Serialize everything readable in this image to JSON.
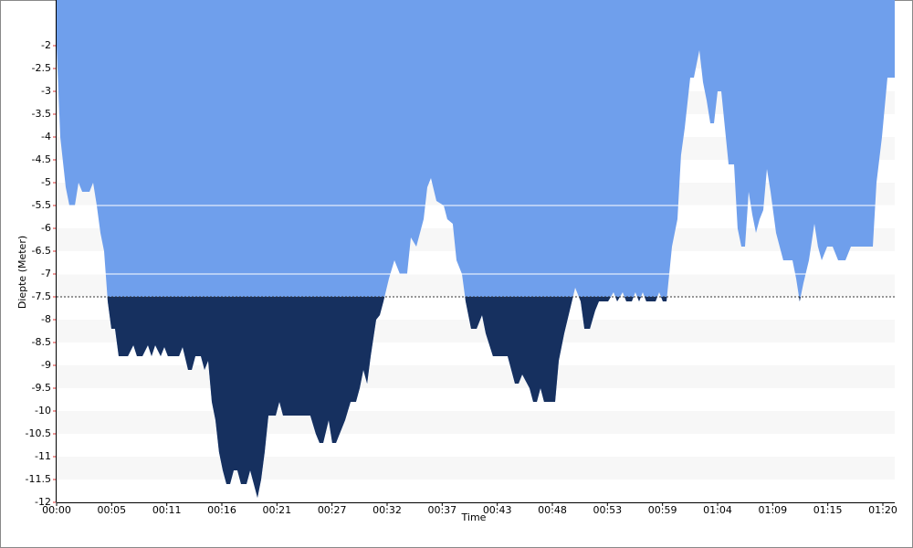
{
  "chart_data": {
    "type": "area",
    "x_label": "Time",
    "y_label": "Diepte (Meter)",
    "x": [
      0,
      0.35,
      0.88,
      1.24,
      1.77,
      2.12,
      2.48,
      3.18,
      3.54,
      3.89,
      4.24,
      4.6,
      4.95,
      5.3,
      5.66,
      6.01,
      6.9,
      7.43,
      7.78,
      8.31,
      8.84,
      9.19,
      9.55,
      10.08,
      10.43,
      10.78,
      11.85,
      12.2,
      12.73,
      13.08,
      13.44,
      13.97,
      14.32,
      14.67,
      15.03,
      15.38,
      15.73,
      16.09,
      16.44,
      16.8,
      17.15,
      17.5,
      17.86,
      18.39,
      18.74,
      19.09,
      19.45,
      19.8,
      20.15,
      20.51,
      21.22,
      21.57,
      21.92,
      24.57,
      25.1,
      25.46,
      25.81,
      26.34,
      26.69,
      27.05,
      27.58,
      27.93,
      28.46,
      28.99,
      29.35,
      29.7,
      30.06,
      30.41,
      30.94,
      31.29,
      31.65,
      32.18,
      32.71,
      33.24,
      33.94,
      34.3,
      34.83,
      35.18,
      35.54,
      35.89,
      36.24,
      36.77,
      37.48,
      37.83,
      38.36,
      38.72,
      39.25,
      39.6,
      40.13,
      40.66,
      41.19,
      41.55,
      42.25,
      43.67,
      44.38,
      44.73,
      45.08,
      45.79,
      46.14,
      46.5,
      46.85,
      47.2,
      48.27,
      48.62,
      49.15,
      49.68,
      50.21,
      50.74,
      51.1,
      51.63,
      52.15,
      52.51,
      53.39,
      53.92,
      54.28,
      54.81,
      55.16,
      55.69,
      56.04,
      56.4,
      56.75,
      57.1,
      57.99,
      58.34,
      58.7,
      59.05,
      59.58,
      60.11,
      60.46,
      60.82,
      61.35,
      61.7,
      62.23,
      62.59,
      62.94,
      63.29,
      63.65,
      64,
      64.35,
      64.71,
      65.06,
      65.59,
      65.94,
      66.3,
      66.65,
      67.01,
      67.36,
      67.71,
      68.07,
      68.42,
      68.77,
      69.13,
      69.66,
      70.36,
      71.25,
      71.6,
      71.95,
      72.31,
      72.84,
      73.37,
      73.72,
      74.08,
      74.61,
      75.14,
      75.67,
      76.38,
      76.91,
      79.03,
      79.38,
      79.91,
      80.44,
      81.15
    ],
    "values": [
      -2,
      -4,
      -5.1,
      -5.5,
      -5.5,
      -5,
      -5.2,
      -5.2,
      -5,
      -5.5,
      -6.1,
      -6.5,
      -7.6,
      -8.2,
      -8.2,
      -8.8,
      -8.8,
      -8.56,
      -8.8,
      -8.8,
      -8.56,
      -8.8,
      -8.56,
      -8.8,
      -8.6,
      -8.8,
      -8.8,
      -8.6,
      -9.1,
      -9.1,
      -8.8,
      -8.8,
      -9.1,
      -8.9,
      -9.8,
      -10.2,
      -10.9,
      -11.3,
      -11.6,
      -11.6,
      -11.3,
      -11.3,
      -11.6,
      -11.6,
      -11.3,
      -11.6,
      -11.9,
      -11.5,
      -10.9,
      -10.1,
      -10.1,
      -9.8,
      -10.1,
      -10.1,
      -10.5,
      -10.7,
      -10.7,
      -10.2,
      -10.7,
      -10.7,
      -10.4,
      -10.2,
      -9.8,
      -9.8,
      -9.5,
      -9.1,
      -9.4,
      -8.8,
      -8,
      -7.9,
      -7.6,
      -7.1,
      -6.7,
      -7,
      -7,
      -6.2,
      -6.4,
      -6.1,
      -5.8,
      -5.1,
      -4.9,
      -5.4,
      -5.5,
      -5.8,
      -5.9,
      -6.7,
      -7,
      -7.6,
      -8.2,
      -8.2,
      -7.9,
      -8.3,
      -8.8,
      -8.8,
      -9.4,
      -9.4,
      -9.2,
      -9.5,
      -9.8,
      -9.8,
      -9.5,
      -9.8,
      -9.8,
      -8.9,
      -8.3,
      -7.8,
      -7.3,
      -7.6,
      -8.2,
      -8.2,
      -7.8,
      -7.6,
      -7.6,
      -7.4,
      -7.6,
      -7.4,
      -7.6,
      -7.6,
      -7.4,
      -7.6,
      -7.4,
      -7.6,
      -7.6,
      -7.4,
      -7.6,
      -7.6,
      -6.4,
      -5.8,
      -4.4,
      -3.8,
      -2.7,
      -2.7,
      -2.1,
      -2.8,
      -3.2,
      -3.7,
      -3.7,
      -3,
      -3,
      -3.8,
      -4.6,
      -4.6,
      -6,
      -6.4,
      -6.4,
      -5.2,
      -5.7,
      -6.1,
      -5.8,
      -5.6,
      -4.7,
      -5.2,
      -6.1,
      -6.7,
      -6.7,
      -7.1,
      -7.6,
      -7.2,
      -6.7,
      -5.9,
      -6.4,
      -6.7,
      -6.4,
      -6.4,
      -6.7,
      -6.7,
      -6.4,
      -6.4,
      -5,
      -4,
      -2.7,
      -2.7
    ],
    "color": "#6f9fec",
    "deep_color": "#16305f",
    "reference_lines": [
      {
        "value": -5.5,
        "style": "solid"
      },
      {
        "value": -7,
        "style": "solid"
      },
      {
        "value": -7.5,
        "style": "dotted"
      }
    ],
    "deep_threshold": -7.5,
    "xlim": [
      0,
      81.15
    ],
    "ylim": [
      -12,
      -1
    ],
    "xticks": [
      {
        "value": 0,
        "label": "00:00"
      },
      {
        "value": 5.333,
        "label": "00:05"
      },
      {
        "value": 10.667,
        "label": "00:11"
      },
      {
        "value": 16,
        "label": "00:16"
      },
      {
        "value": 21.333,
        "label": "00:21"
      },
      {
        "value": 26.667,
        "label": "00:27"
      },
      {
        "value": 32,
        "label": "00:32"
      },
      {
        "value": 37.333,
        "label": "00:37"
      },
      {
        "value": 42.667,
        "label": "00:43"
      },
      {
        "value": 48,
        "label": "00:48"
      },
      {
        "value": 53.333,
        "label": "00:53"
      },
      {
        "value": 58.667,
        "label": "00:59"
      },
      {
        "value": 64,
        "label": "01:04"
      },
      {
        "value": 69.333,
        "label": "01:09"
      },
      {
        "value": 74.667,
        "label": "01:15"
      },
      {
        "value": 80,
        "label": "01:20"
      }
    ],
    "yticks": [
      -2,
      -2.5,
      -3,
      -3.5,
      -4,
      -4.5,
      -5,
      -5.5,
      -6,
      -6.5,
      -7,
      -7.5,
      -8,
      -8.5,
      -9,
      -9.5,
      -10,
      -10.5,
      -11,
      -11.5,
      -12
    ]
  }
}
